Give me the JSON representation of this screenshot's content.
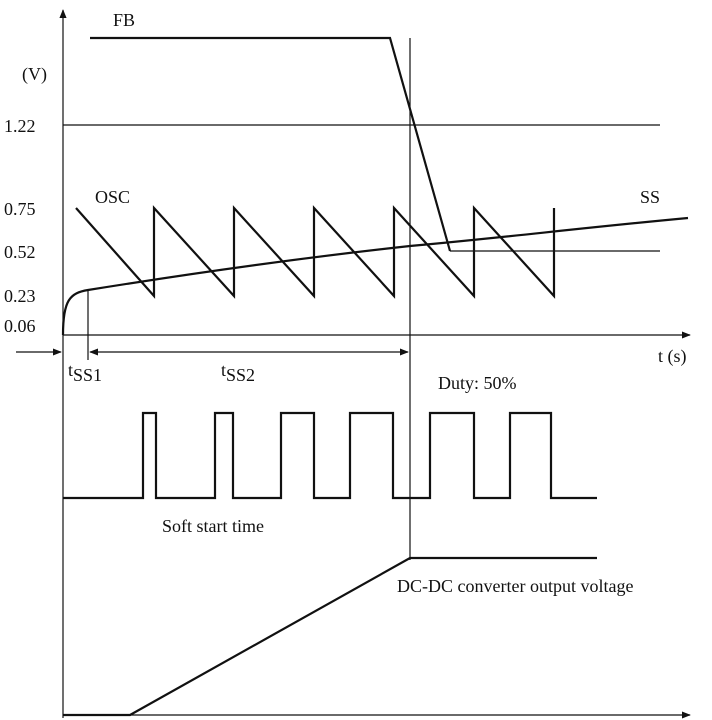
{
  "labels": {
    "y_unit": "(V)",
    "x_unit": "t (s)",
    "fb": "FB",
    "osc": "OSC",
    "ss": "SS",
    "tss1_main": "t",
    "tss1_sub": "SS1",
    "tss2_main": "t",
    "tss2_sub": "SS2",
    "duty": "Duty: 50%",
    "soft_start": "Soft start time",
    "output": "DC-DC converter output voltage"
  },
  "y_ticks": [
    "1.22",
    "0.75",
    "0.52",
    "0.23",
    "0.06"
  ]
}
